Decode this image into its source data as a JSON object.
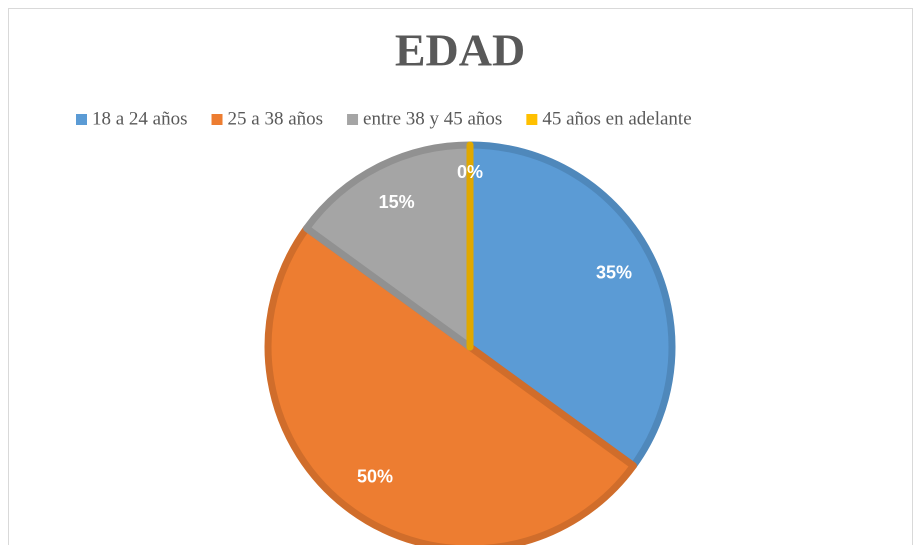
{
  "chart_data": {
    "type": "pie",
    "title": "EDAD",
    "categories": [
      "18 a 24 años",
      "25 a 38 años",
      "entre 38 y 45 años",
      "45 años en adelante"
    ],
    "values": [
      35,
      50,
      15,
      0
    ],
    "value_labels": [
      "35%",
      "50%",
      "15%",
      "0%"
    ],
    "colors": [
      "#5b9bd5",
      "#ed7d31",
      "#a5a5a5",
      "#ffc000"
    ],
    "legend": "top"
  }
}
